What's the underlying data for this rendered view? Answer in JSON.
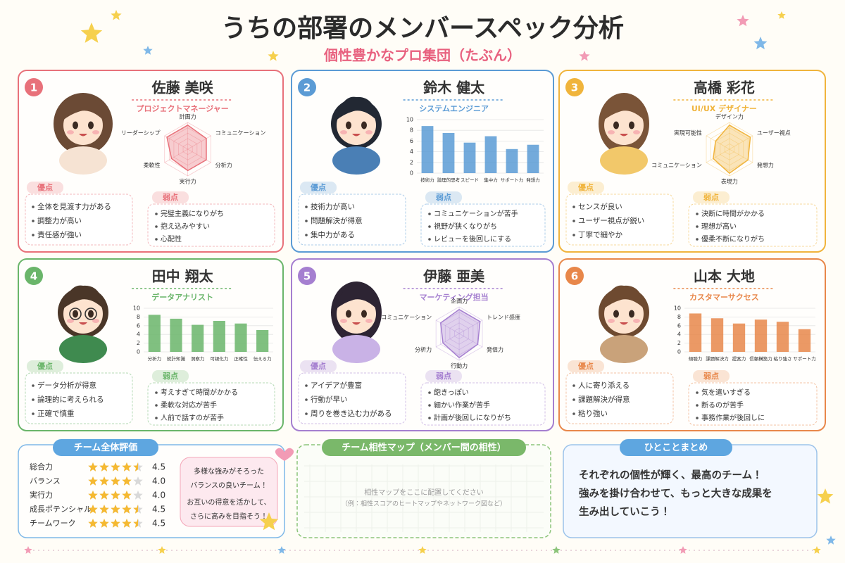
{
  "header": {
    "title": "うちの部署のメンバースペック分析",
    "subtitle": "個性豊かなプロ集団（たぶん）"
  },
  "labels": {
    "strengths": "優点",
    "weaknesses": "弱点"
  },
  "members": [
    {
      "number": 1,
      "name": "佐藤 美咲",
      "role": "プロジェクトマネージャー",
      "color": "#e8717a",
      "chart": {
        "type": "radar",
        "rlim": [
          0,
          5
        ],
        "categories": [
          "計画力",
          "コミュニケーション",
          "分析力",
          "実行力",
          "柔軟性",
          "リーダーシップ"
        ],
        "values": [
          4.5,
          4,
          4,
          4,
          3.5,
          4.5
        ]
      },
      "strengths": [
        "全体を見渡す力がある",
        "調整力が高い",
        "責任感が強い"
      ],
      "weaknesses": [
        "完璧主義になりがち",
        "抱え込みやすい",
        "心配性"
      ]
    },
    {
      "number": 2,
      "name": "鈴木 健太",
      "role": "システムエンジニア",
      "color": "#5b9bd5",
      "chart": {
        "type": "bar",
        "ylim": [
          0,
          10
        ],
        "yticks": [
          0,
          2,
          4,
          6,
          8,
          10
        ],
        "categories": [
          "技術力",
          "論理的思考",
          "スピード",
          "集中力",
          "サポート力",
          "発想力"
        ],
        "values": [
          8.8,
          7.5,
          5.7,
          6.9,
          4.5,
          5.3
        ]
      },
      "strengths": [
        "技術力が高い",
        "問題解決が得意",
        "集中力がある"
      ],
      "weaknesses": [
        "コミュニケーションが苦手",
        "視野が狭くなりがち",
        "レビューを後回しにする"
      ]
    },
    {
      "number": 3,
      "name": "高橋 彩花",
      "role": "UI/UX デザイナー",
      "color": "#f0b43c",
      "chart": {
        "type": "radar",
        "rlim": [
          0,
          5
        ],
        "categories": [
          "デザイン力",
          "ユーザー視点",
          "発想力",
          "表現力",
          "コミュニケーション",
          "実現可能性"
        ],
        "values": [
          4.5,
          4.5,
          4,
          4.5,
          3.5,
          3
        ]
      },
      "strengths": [
        "センスが良い",
        "ユーザー視点が鋭い",
        "丁寧で細やか"
      ],
      "weaknesses": [
        "決断に時間がかかる",
        "理想が高い",
        "優柔不断になりがち"
      ]
    },
    {
      "number": 4,
      "name": "田中 翔太",
      "role": "データアナリスト",
      "color": "#6ab56a",
      "chart": {
        "type": "bar",
        "ylim": [
          0,
          10
        ],
        "yticks": [
          0,
          2,
          4,
          6,
          8,
          10
        ],
        "categories": [
          "分析力",
          "統計知識",
          "洞察力",
          "可視化力",
          "正確性",
          "伝える力"
        ],
        "values": [
          8.5,
          7.6,
          6.2,
          7.1,
          6.5,
          5.0
        ]
      },
      "strengths": [
        "データ分析が得意",
        "論理的に考えられる",
        "正確で慎重"
      ],
      "weaknesses": [
        "考えすぎて時間がかかる",
        "柔軟な対応が苦手",
        "人前で話すのが苦手"
      ]
    },
    {
      "number": 5,
      "name": "伊藤 亜美",
      "role": "マーケティング担当",
      "color": "#a57fd0",
      "chart": {
        "type": "radar",
        "rlim": [
          0,
          5
        ],
        "categories": [
          "企画力",
          "トレンド感度",
          "発信力",
          "行動力",
          "分析力",
          "コミュニケーション"
        ],
        "values": [
          4.5,
          4.5,
          4,
          4.5,
          3.5,
          4
        ]
      },
      "strengths": [
        "アイデアが豊富",
        "行動が早い",
        "周りを巻き込む力がある"
      ],
      "weaknesses": [
        "飽きっぽい",
        "細かい作業が苦手",
        "計画が後回しになりがち"
      ]
    },
    {
      "number": 6,
      "name": "山本 大地",
      "role": "カスタマーサクセス",
      "color": "#e8874a",
      "chart": {
        "type": "bar",
        "ylim": [
          0,
          10
        ],
        "yticks": [
          0,
          2,
          4,
          6,
          8,
          10
        ],
        "categories": [
          "傾聴力",
          "課題解決力",
          "提案力",
          "信頼構築力",
          "粘り強さ",
          "サポート力"
        ],
        "values": [
          8.8,
          7.7,
          6.5,
          7.4,
          6.9,
          5.2
        ]
      },
      "strengths": [
        "人に寄り添える",
        "課題解決が得意",
        "粘り強い"
      ],
      "weaknesses": [
        "気を遣いすぎる",
        "断るのが苦手",
        "事務作業が後回しに"
      ]
    }
  ],
  "team_eval": {
    "title": "チーム全体評価",
    "rating_max": 5,
    "items": [
      "総合力",
      "バランス",
      "実行力",
      "成長ポテンシャル",
      "チームワーク"
    ],
    "values": [
      4.5,
      4,
      4,
      4.5,
      4.5
    ],
    "value_labels": [
      "4.5",
      "4.0",
      "4.0",
      "4.5",
      "4.5"
    ],
    "comment": [
      "多様な強みがそろった",
      "バランスの良いチーム！",
      "お互いの得意を活かして、",
      "さらに高みを目指そう！"
    ]
  },
  "compat_map": {
    "title": "チーム相性マップ（メンバー間の相性）",
    "placeholder": "相性マップをここに配置してください",
    "example": "（例：相性スコアのヒートマップやネットワーク図など）"
  },
  "summary": {
    "title": "ひとことまとめ",
    "lines": [
      "それぞれの個性が輝く、最高のチーム！",
      "強みを掛け合わせて、もっと大きな成果を",
      "生み出していこう！"
    ]
  }
}
